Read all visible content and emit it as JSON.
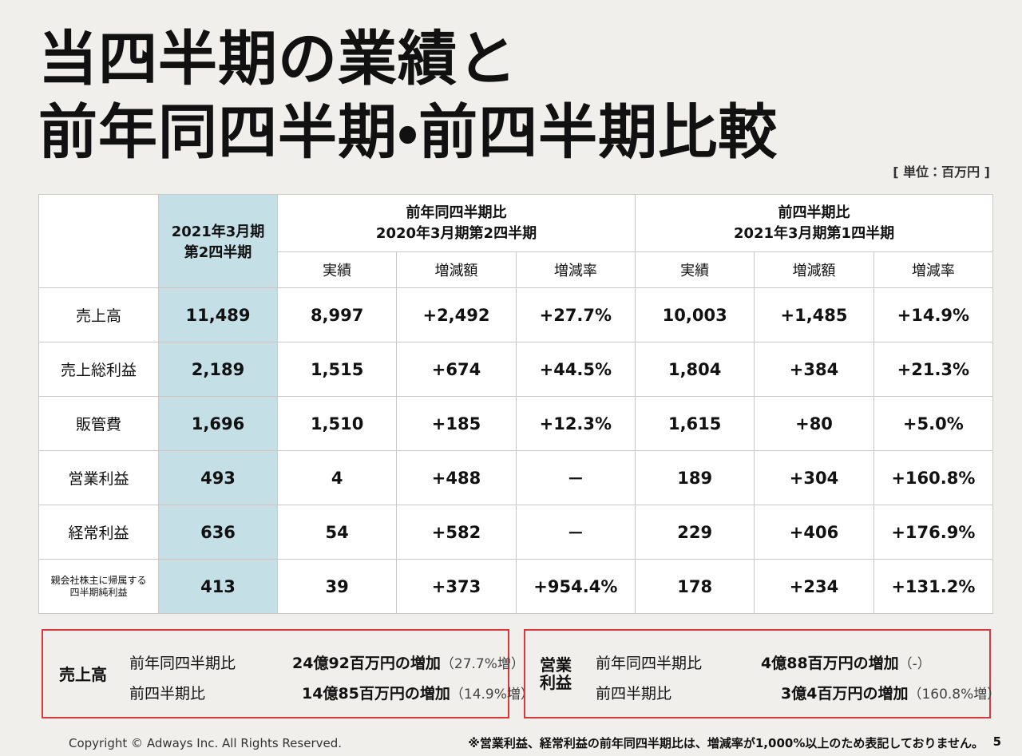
{
  "header": {
    "title_lines": [
      "当四半期の業績と",
      "前年同四半期・前四半期比較"
    ],
    "unit": "[ 単位：百万円 ]"
  },
  "table": {
    "current_period": [
      "2021年3月期",
      "第2四半期"
    ],
    "groups": [
      {
        "title": "前年同四半期比",
        "period": "2020年3月期第2四半期",
        "columns": [
          "実績",
          "増減額",
          "増減率"
        ]
      },
      {
        "title": "前四半期比",
        "period": "2021年3月期第1四半期",
        "columns": [
          "実績",
          "増減額",
          "増減率"
        ]
      }
    ],
    "rows": [
      {
        "label": [
          "売上高"
        ],
        "values": [
          "11,489",
          "8,997",
          "+2,492",
          "+27.7%",
          "10,003",
          "+1,485",
          "+14.9%"
        ]
      },
      {
        "label": [
          "売上総利益"
        ],
        "values": [
          "2,189",
          "1,515",
          "+674",
          "+44.5%",
          "1,804",
          "+384",
          "+21.3%"
        ]
      },
      {
        "label": [
          "販管費"
        ],
        "values": [
          "1,696",
          "1,510",
          "+185",
          "+12.3%",
          "1,615",
          "+80",
          "+5.0%"
        ]
      },
      {
        "label": [
          "営業利益"
        ],
        "values": [
          "493",
          "4",
          "+488",
          "－",
          "189",
          "+304",
          "+160.8%"
        ]
      },
      {
        "label": [
          "経常利益"
        ],
        "values": [
          "636",
          "54",
          "+582",
          "－",
          "229",
          "+406",
          "+176.9%"
        ]
      },
      {
        "label": [
          "親会社株主に帰属する",
          "四半期純利益"
        ],
        "values": [
          "413",
          "39",
          "+373",
          "+954.4%",
          "178",
          "+234",
          "+131.2%"
        ]
      }
    ]
  },
  "summary": [
    {
      "title_lines": [
        "売上高"
      ],
      "items": [
        {
          "label": "前年同四半期比",
          "text": "24億92百万円の増加",
          "note": "（27.7%増）"
        },
        {
          "label": "前四半期比",
          "text": "14億85百万円の増加",
          "note": "（14.9%増）"
        }
      ]
    },
    {
      "title_lines": [
        "営業",
        "利益"
      ],
      "items": [
        {
          "label": "前年同四半期比",
          "text": "4億88百万円の増加",
          "note": "（-）"
        },
        {
          "label": "前四半期比",
          "text": "3億4百万円の増加",
          "note": "（160.8%増）"
        }
      ]
    }
  ],
  "footer": {
    "copyright": "Copyright © Adways Inc. All Rights Reserved.",
    "note": "※営業利益、経常利益の前年同四半期比は、増減率が1,000%以上のため表記しておりません。",
    "page": "5"
  }
}
